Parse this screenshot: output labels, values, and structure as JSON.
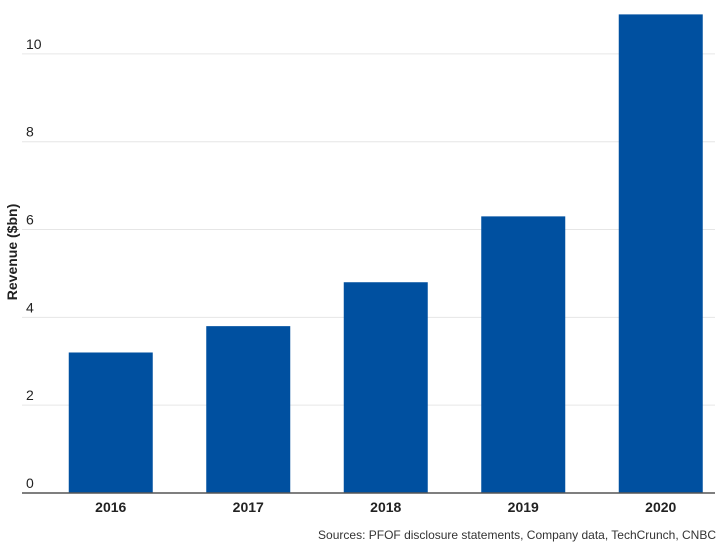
{
  "chart_data": {
    "type": "bar",
    "categories": [
      "2016",
      "2017",
      "2018",
      "2019",
      "2020"
    ],
    "values": [
      3.2,
      3.8,
      4.8,
      6.3,
      10.9
    ],
    "ylabel": "Revenue ($bn)",
    "xlabel": "",
    "ylim": [
      0,
      11
    ],
    "yticks": [
      0,
      2,
      4,
      6,
      8,
      10
    ],
    "grid": true,
    "bar_color": "#0050a0",
    "grid_color": "#e6e6e6",
    "axis_color": "#555555"
  },
  "source": "Sources: PFOF disclosure statements, Company data, TechCrunch, CNBC"
}
